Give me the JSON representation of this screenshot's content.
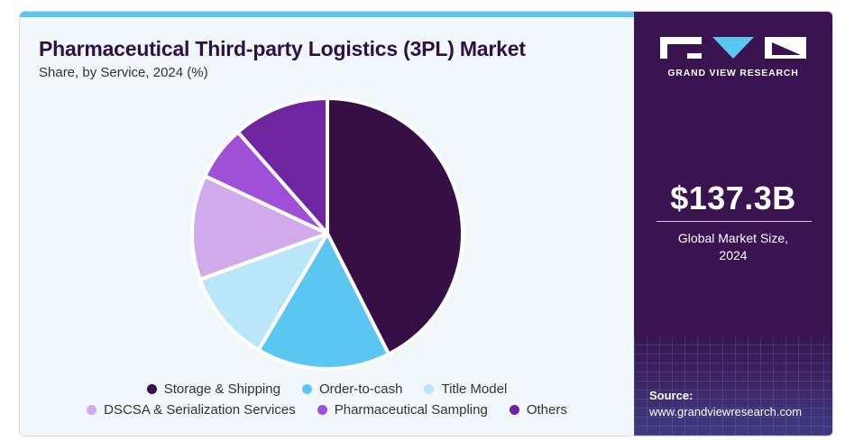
{
  "header": {
    "title": "Pharmaceutical Third-party Logistics (3PL) Market",
    "subtitle": "Share, by Service, 2024 (%)"
  },
  "colors": {
    "accent_bar": "#5bc6f0",
    "side_panel": "#3a1450",
    "title": "#2d1045"
  },
  "chart_data": {
    "type": "pie",
    "title": "Pharmaceutical Third-party Logistics (3PL) Market",
    "subtitle": "Share, by Service, 2024 (%)",
    "start_angle_deg": 0,
    "direction": "clockwise",
    "legend_position": "bottom",
    "series": [
      {
        "name": "Storage & Shipping",
        "value": 42.5,
        "color": "#361044"
      },
      {
        "name": "Order-to-cash",
        "value": 16.0,
        "color": "#5cc6f2"
      },
      {
        "name": "Title Model",
        "value": 11.0,
        "color": "#b9e6f8"
      },
      {
        "name": "DSCSA & Serialization Services",
        "value": 12.5,
        "color": "#d0aaea"
      },
      {
        "name": "Pharmaceutical Sampling",
        "value": 6.5,
        "color": "#a050d6"
      },
      {
        "name": "Others",
        "value": 11.5,
        "color": "#6f24a0"
      }
    ]
  },
  "sidebar": {
    "brand": "GRAND VIEW RESEARCH",
    "market_size": "$137.3B",
    "market_size_label_line1": "Global Market Size,",
    "market_size_label_line2": "2024",
    "source_label": "Source:",
    "source_url": "www.grandviewresearch.com"
  }
}
